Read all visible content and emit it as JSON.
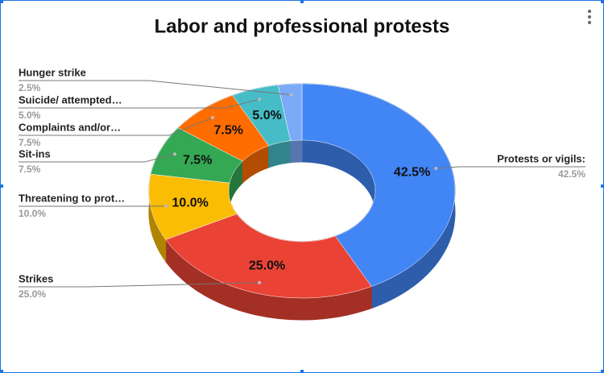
{
  "chart_data": {
    "type": "donut3d",
    "title": "Labor and professional protests",
    "categories": [
      "Protests or vigils:",
      "Strikes",
      "Threatening to prot…",
      "Sit-ins",
      "Complaints and/or…",
      "Suicide/ attempted…",
      "Hunger strike"
    ],
    "values": [
      42.5,
      25.0,
      10.0,
      7.5,
      7.5,
      5.0,
      2.5
    ],
    "value_labels": [
      "42.5%",
      "25.0%",
      "10.0%",
      "7.5%",
      "7.5%",
      "5.0%",
      "2.5%"
    ],
    "colors": [
      "#4285f4",
      "#ea4335",
      "#fbbc04",
      "#34a853",
      "#ff6d01",
      "#46bdc6",
      "#7baaf7"
    ]
  }
}
